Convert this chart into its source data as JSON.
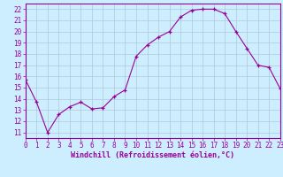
{
  "x": [
    0,
    1,
    2,
    3,
    4,
    5,
    6,
    7,
    8,
    9,
    10,
    11,
    12,
    13,
    14,
    15,
    16,
    17,
    18,
    19,
    20,
    21,
    22,
    23
  ],
  "y": [
    15.7,
    13.7,
    11.0,
    12.6,
    13.3,
    13.7,
    13.1,
    13.2,
    14.2,
    14.8,
    17.8,
    18.8,
    19.5,
    20.0,
    21.3,
    21.9,
    22.0,
    22.0,
    21.6,
    20.0,
    18.5,
    17.0,
    16.8,
    14.9
  ],
  "xlim": [
    0,
    23
  ],
  "ylim": [
    10.5,
    22.5
  ],
  "yticks": [
    11,
    12,
    13,
    14,
    15,
    16,
    17,
    18,
    19,
    20,
    21,
    22
  ],
  "xticks": [
    0,
    1,
    2,
    3,
    4,
    5,
    6,
    7,
    8,
    9,
    10,
    11,
    12,
    13,
    14,
    15,
    16,
    17,
    18,
    19,
    20,
    21,
    22,
    23
  ],
  "xlabel": "Windchill (Refroidissement éolien,°C)",
  "line_color": "#990099",
  "marker_color": "#990099",
  "bg_color": "#cceeff",
  "grid_color": "#b0c8d8",
  "axis_color": "#990099",
  "tick_color": "#990099",
  "label_color": "#990099",
  "tick_fontsize": 5.5,
  "label_fontsize": 6.0
}
